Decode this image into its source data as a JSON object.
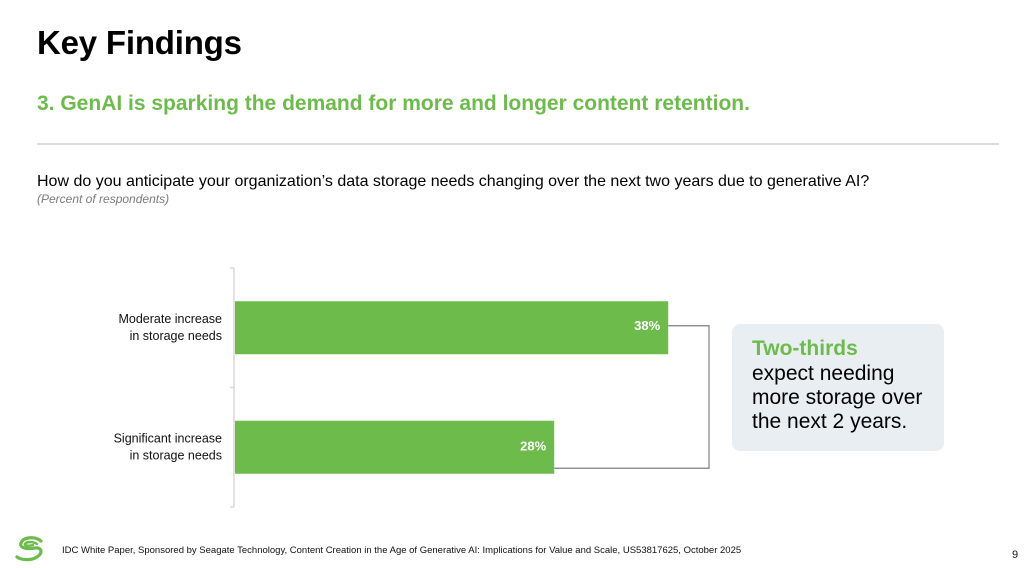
{
  "slide": {
    "title": "Key Findings",
    "subtitle": "3. GenAI is sparking the demand for more and longer content retention.",
    "question": "How do you anticipate your organization’s data storage needs changing over the next two years due to generative AI?",
    "question_note": "(Percent of respondents)"
  },
  "callout": {
    "headline": "Two-thirds",
    "body": "expect needing more storage over the next 2 years."
  },
  "footer": {
    "logo_icon": "seagate-logo-icon",
    "citation": "IDC White Paper, Sponsored by Seagate Technology, Content Creation in the Age of Generative AI: Implications for Value and Scale, US53817625, October 2025",
    "page_number": "9"
  },
  "colors": {
    "accent_green": "#6cbb4b",
    "bar_fill": "#6cbb4b",
    "callout_bg": "#e9eef2",
    "axis": "#d9d9d9",
    "bracket": "#7f7f7f"
  },
  "chart_data": {
    "type": "bar",
    "orientation": "horizontal",
    "title": "How do you anticipate your organization’s data storage needs changing over the next two years due to generative AI?",
    "subtitle": "(Percent of respondents)",
    "categories": [
      [
        "Moderate increase",
        "in storage needs"
      ],
      [
        "Significant increase",
        "in storage needs"
      ]
    ],
    "values": [
      38,
      28
    ],
    "value_labels": [
      "38%",
      "28%"
    ],
    "unit": "%",
    "xlabel": "",
    "ylabel": "",
    "xlim": [
      0,
      100
    ],
    "grid": false,
    "legend": "none",
    "annotation": {
      "type": "bracket",
      "connects": [
        0,
        1
      ],
      "text": "Two-thirds expect needing more storage over the next 2 years."
    }
  }
}
